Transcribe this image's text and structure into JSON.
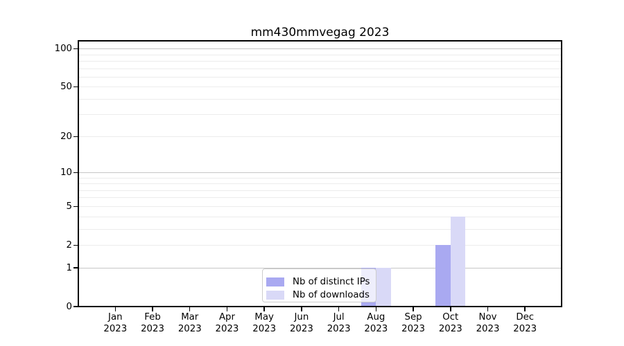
{
  "title": "mm430mmvegag 2023",
  "colors": {
    "ips_bar": "#a9a9f1",
    "downloads_bar": "#d9d9f7",
    "grid_minor": "#ececec",
    "grid_major": "#c6c6c6",
    "axis": "#000000",
    "legend_border": "#cccccc",
    "legend_background": "rgba(255,255,255,0.8)"
  },
  "legend": {
    "items": [
      {
        "label": "Nb of distinct IPs",
        "color_key": "ips_bar"
      },
      {
        "label": "Nb of downloads",
        "color_key": "downloads_bar"
      }
    ]
  },
  "chart_data": {
    "type": "bar",
    "title": "mm430mmvegag 2023",
    "categories": [
      "Jan 2023",
      "Feb 2023",
      "Mar 2023",
      "Apr 2023",
      "May 2023",
      "Jun 2023",
      "Jul 2023",
      "Aug 2023",
      "Sep 2023",
      "Oct 2023",
      "Nov 2023",
      "Dec 2023"
    ],
    "x_tick_months": [
      "Jan",
      "Feb",
      "Mar",
      "Apr",
      "May",
      "Jun",
      "Jul",
      "Aug",
      "Sep",
      "Oct",
      "Nov",
      "Dec"
    ],
    "x_tick_year": "2023",
    "series": [
      {
        "name": "Nb of distinct IPs",
        "values": [
          0,
          0,
          0,
          0,
          0,
          0,
          0,
          1,
          0,
          2,
          0,
          0
        ]
      },
      {
        "name": "Nb of downloads",
        "values": [
          0,
          0,
          0,
          0,
          0,
          0,
          0,
          1,
          0,
          4,
          0,
          0
        ]
      }
    ],
    "xlabel": "",
    "ylabel": "",
    "y_axis": {
      "scale": "log10(1+y)",
      "tick_values": [
        0,
        1,
        2,
        5,
        10,
        20,
        50,
        100
      ],
      "range": [
        0,
        115
      ],
      "grid_minor_values": [
        2,
        3,
        4,
        5,
        6,
        7,
        8,
        9,
        20,
        30,
        40,
        50,
        60,
        70,
        80,
        90
      ],
      "grid_major_values": [
        1,
        10,
        100
      ]
    },
    "grid": "on",
    "legend_position": "inside-bottom-center"
  }
}
